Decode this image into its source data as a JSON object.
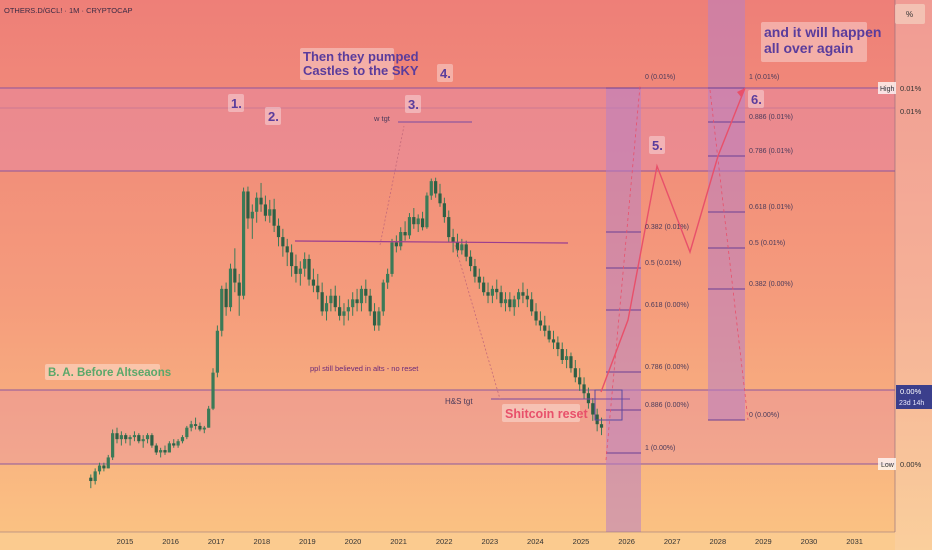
{
  "symbol": "OTHERS.D/GCL! · 1M · CRYPTOCAP",
  "scale_button": "%",
  "chart_data": {
    "type": "candlestick",
    "title": "OTHERS.D/GCL! · 1M · CRYPTOCAP",
    "xlabel": "",
    "ylabel": "",
    "x_ticks": [
      "2015",
      "2016",
      "2017",
      "2018",
      "2019",
      "2020",
      "2021",
      "2022",
      "2023",
      "2024",
      "2025",
      "2026",
      "2027",
      "2028",
      "2029",
      "2030",
      "2031"
    ],
    "x_range": [
      2014.0,
      2031.6
    ],
    "log_scale": true,
    "grid": false,
    "price_labels": {
      "high": {
        "tag": "High",
        "value": "0.01%"
      },
      "second": "0.01%",
      "current": {
        "value": "0.00%",
        "countdown": "23d 14h"
      },
      "low": {
        "tag": "Low",
        "value": "0.00%"
      }
    },
    "series": [
      {
        "ohlc_approx_index": [
          [
            0.25,
            0.26,
            0.22,
            0.24
          ],
          [
            0.24,
            0.28,
            0.23,
            0.27
          ],
          [
            0.27,
            0.3,
            0.26,
            0.29
          ],
          [
            0.29,
            0.3,
            0.27,
            0.28
          ],
          [
            0.28,
            0.33,
            0.28,
            0.32
          ],
          [
            0.32,
            0.45,
            0.31,
            0.43
          ],
          [
            0.43,
            0.46,
            0.38,
            0.4
          ],
          [
            0.4,
            0.44,
            0.37,
            0.42
          ],
          [
            0.42,
            0.43,
            0.38,
            0.4
          ],
          [
            0.4,
            0.42,
            0.37,
            0.41
          ],
          [
            0.41,
            0.44,
            0.39,
            0.42
          ],
          [
            0.42,
            0.43,
            0.38,
            0.39
          ],
          [
            0.39,
            0.42,
            0.36,
            0.4
          ],
          [
            0.4,
            0.43,
            0.38,
            0.42
          ],
          [
            0.42,
            0.43,
            0.36,
            0.37
          ],
          [
            0.37,
            0.38,
            0.33,
            0.34
          ],
          [
            0.34,
            0.36,
            0.32,
            0.35
          ],
          [
            0.35,
            0.37,
            0.33,
            0.34
          ],
          [
            0.34,
            0.39,
            0.34,
            0.38
          ],
          [
            0.38,
            0.4,
            0.36,
            0.37
          ],
          [
            0.37,
            0.4,
            0.36,
            0.39
          ],
          [
            0.39,
            0.42,
            0.38,
            0.41
          ],
          [
            0.41,
            0.47,
            0.4,
            0.46
          ],
          [
            0.46,
            0.5,
            0.44,
            0.48
          ],
          [
            0.48,
            0.52,
            0.45,
            0.47
          ],
          [
            0.47,
            0.49,
            0.44,
            0.45
          ],
          [
            0.45,
            0.47,
            0.43,
            0.46
          ],
          [
            0.46,
            0.6,
            0.46,
            0.58
          ],
          [
            0.58,
            0.95,
            0.57,
            0.9
          ],
          [
            0.9,
            1.6,
            0.85,
            1.5
          ],
          [
            1.5,
            2.6,
            1.4,
            2.5
          ],
          [
            2.5,
            2.7,
            1.8,
            2.0
          ],
          [
            2.0,
            3.4,
            1.9,
            3.2
          ],
          [
            3.2,
            4.1,
            2.4,
            2.7
          ],
          [
            2.7,
            3.0,
            1.8,
            2.3
          ],
          [
            2.3,
            8.6,
            2.2,
            8.2
          ],
          [
            8.2,
            8.7,
            5.2,
            5.9
          ],
          [
            5.9,
            7.0,
            4.6,
            6.4
          ],
          [
            6.4,
            8.1,
            5.6,
            7.6
          ],
          [
            7.6,
            9.1,
            6.4,
            7.0
          ],
          [
            7.0,
            7.8,
            5.7,
            6.1
          ],
          [
            6.1,
            7.4,
            5.6,
            6.6
          ],
          [
            6.6,
            7.5,
            5.0,
            5.4
          ],
          [
            5.4,
            5.9,
            4.2,
            4.7
          ],
          [
            4.7,
            5.2,
            3.7,
            4.2
          ],
          [
            4.2,
            4.6,
            3.3,
            3.9
          ],
          [
            3.9,
            4.3,
            2.9,
            3.3
          ],
          [
            3.3,
            3.8,
            2.7,
            3.0
          ],
          [
            3.0,
            3.5,
            2.6,
            3.2
          ],
          [
            3.2,
            3.9,
            2.9,
            3.6
          ],
          [
            3.6,
            3.8,
            2.6,
            2.8
          ],
          [
            2.8,
            3.2,
            2.4,
            2.6
          ],
          [
            2.6,
            3.0,
            2.2,
            2.4
          ],
          [
            2.4,
            2.7,
            1.8,
            1.9
          ],
          [
            1.9,
            2.3,
            1.7,
            2.1
          ],
          [
            2.1,
            2.5,
            1.9,
            2.3
          ],
          [
            2.3,
            2.6,
            1.9,
            2.0
          ],
          [
            2.0,
            2.3,
            1.7,
            1.8
          ],
          [
            1.8,
            2.1,
            1.6,
            1.9
          ],
          [
            1.9,
            2.2,
            1.7,
            2.0
          ],
          [
            2.0,
            2.4,
            1.8,
            2.2
          ],
          [
            2.2,
            2.5,
            1.9,
            2.1
          ],
          [
            2.1,
            2.6,
            1.9,
            2.5
          ],
          [
            2.5,
            2.8,
            2.1,
            2.3
          ],
          [
            2.3,
            2.5,
            1.8,
            1.9
          ],
          [
            1.9,
            2.1,
            1.5,
            1.6
          ],
          [
            1.6,
            2.0,
            1.5,
            1.9
          ],
          [
            1.9,
            2.8,
            1.8,
            2.7
          ],
          [
            2.7,
            3.2,
            2.5,
            3.0
          ],
          [
            3.0,
            4.6,
            2.9,
            4.4
          ],
          [
            4.4,
            4.8,
            3.9,
            4.2
          ],
          [
            4.2,
            5.3,
            4.0,
            5.0
          ],
          [
            5.0,
            5.7,
            4.5,
            4.8
          ],
          [
            4.8,
            6.3,
            4.6,
            6.0
          ],
          [
            6.0,
            6.7,
            5.2,
            5.5
          ],
          [
            5.5,
            6.2,
            5.0,
            5.9
          ],
          [
            5.9,
            6.4,
            5.1,
            5.3
          ],
          [
            5.3,
            8.1,
            5.2,
            7.8
          ],
          [
            7.8,
            9.6,
            7.4,
            9.3
          ],
          [
            9.3,
            9.7,
            7.6,
            8.0
          ],
          [
            8.0,
            9.0,
            6.8,
            7.1
          ],
          [
            7.1,
            7.6,
            5.6,
            6.0
          ],
          [
            6.0,
            6.5,
            4.4,
            4.7
          ],
          [
            4.7,
            5.2,
            3.9,
            4.4
          ],
          [
            4.4,
            4.9,
            3.7,
            4.0
          ],
          [
            4.0,
            4.6,
            3.8,
            4.3
          ],
          [
            4.3,
            4.5,
            3.5,
            3.7
          ],
          [
            3.7,
            4.0,
            3.1,
            3.3
          ],
          [
            3.3,
            3.6,
            2.7,
            2.9
          ],
          [
            2.9,
            3.2,
            2.5,
            2.7
          ],
          [
            2.7,
            2.9,
            2.3,
            2.4
          ],
          [
            2.4,
            2.7,
            2.1,
            2.3
          ],
          [
            2.3,
            2.6,
            2.1,
            2.5
          ],
          [
            2.5,
            2.8,
            2.2,
            2.4
          ],
          [
            2.4,
            2.6,
            2.0,
            2.1
          ],
          [
            2.1,
            2.4,
            1.9,
            2.2
          ],
          [
            2.2,
            2.4,
            1.9,
            2.0
          ],
          [
            2.0,
            2.3,
            1.8,
            2.2
          ],
          [
            2.2,
            2.5,
            2.0,
            2.4
          ],
          [
            2.4,
            2.7,
            2.1,
            2.3
          ],
          [
            2.3,
            2.5,
            2.0,
            2.2
          ],
          [
            2.2,
            2.4,
            1.8,
            1.9
          ],
          [
            1.9,
            2.1,
            1.6,
            1.7
          ],
          [
            1.7,
            1.9,
            1.5,
            1.6
          ],
          [
            1.6,
            1.8,
            1.4,
            1.5
          ],
          [
            1.5,
            1.6,
            1.3,
            1.35
          ],
          [
            1.35,
            1.5,
            1.2,
            1.3
          ],
          [
            1.3,
            1.4,
            1.1,
            1.2
          ],
          [
            1.2,
            1.3,
            1.0,
            1.05
          ],
          [
            1.05,
            1.2,
            0.95,
            1.1
          ],
          [
            1.1,
            1.15,
            0.9,
            0.95
          ],
          [
            0.95,
            1.05,
            0.8,
            0.85
          ],
          [
            0.85,
            0.95,
            0.72,
            0.78
          ],
          [
            0.78,
            0.85,
            0.65,
            0.7
          ],
          [
            0.7,
            0.75,
            0.58,
            0.62
          ],
          [
            0.62,
            0.66,
            0.5,
            0.54
          ],
          [
            0.54,
            0.58,
            0.44,
            0.48
          ],
          [
            0.48,
            0.52,
            0.42,
            0.46
          ]
        ]
      }
    ],
    "levels": [
      {
        "name": "High",
        "value": "0.01%"
      },
      {
        "name": "Low",
        "value": "0.00%"
      }
    ],
    "fib_projection_1": {
      "labels": [
        "0 (0.01%)",
        "0.382 (0.01%)",
        "0.5 (0.01%)",
        "0.618 (0.00%)",
        "0.786 (0.00%)",
        "0.886 (0.00%)",
        "1 (0.00%)"
      ]
    },
    "fib_projection_2": {
      "labels": [
        "1 (0.01%)",
        "0.886 (0.01%)",
        "0.786 (0.01%)",
        "0.618 (0.01%)",
        "0.5 (0.01%)",
        "0.382 (0.00%)",
        "0 (0.00%)"
      ]
    }
  },
  "annotations": {
    "top_left_text": "Then they pumped\nCastles to the SKY",
    "top_right_text": "and it will happen\nall over again",
    "wave_1": "1.",
    "wave_2": "2.",
    "wave_3": "3.",
    "wave_4": "4.",
    "wave_5": "5.",
    "wave_6": "6.",
    "w_tgt": "w tgt",
    "before_altseasons": "B. A. Before Altseaons",
    "believed": "ppl still believed in alts - no reset",
    "hs_tgt": "H&S tgt",
    "shitcoin_reset": "Shitcoin reset"
  },
  "colors": {
    "bg_top": "#ee7f78",
    "bg_mid": "#f59c7c",
    "bg_bottom": "#fbc483",
    "candle": "#3b7a57",
    "level_line": "#7a4aa0",
    "band_fill": "#e58aa9",
    "projection_fill": "#b880c4",
    "green_text": "#5aa86a",
    "purple_text": "#5a3c9c",
    "red_text": "#e8506a"
  }
}
